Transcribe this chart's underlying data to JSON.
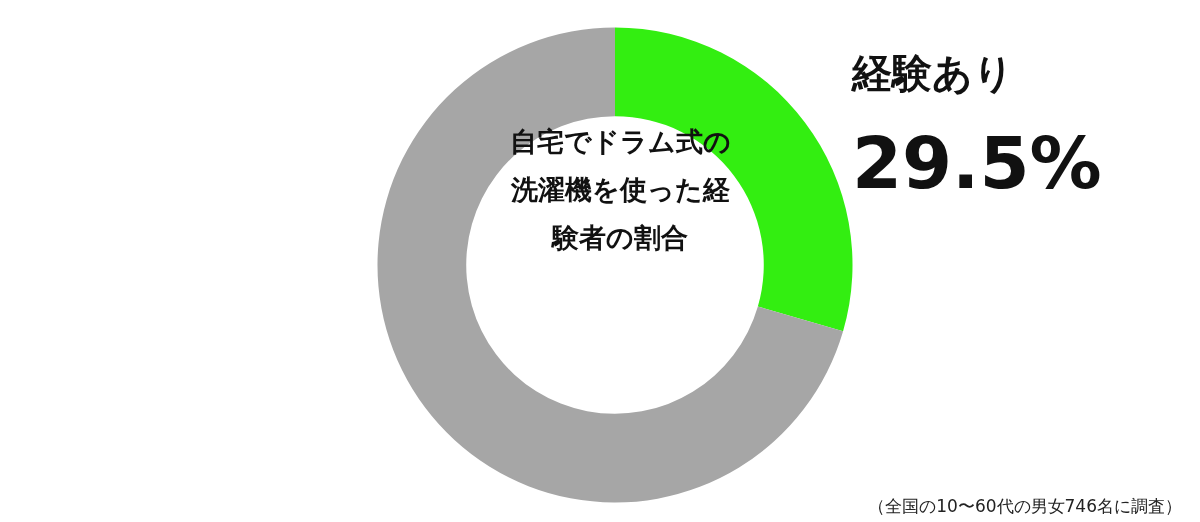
{
  "chart_data": {
    "type": "donut",
    "title": "自宅でドラム式の洗濯機を使った経験者の割合",
    "categories": [
      "経験あり",
      null
    ],
    "values": [
      29.5,
      70.5
    ],
    "value_labels": [
      "29.5%",
      null
    ],
    "colors": [
      "#33ee11",
      "#a6a6a6"
    ],
    "legend": false,
    "annotations": [
      "（全国の10〜60代の男女746名に調査）"
    ]
  }
}
